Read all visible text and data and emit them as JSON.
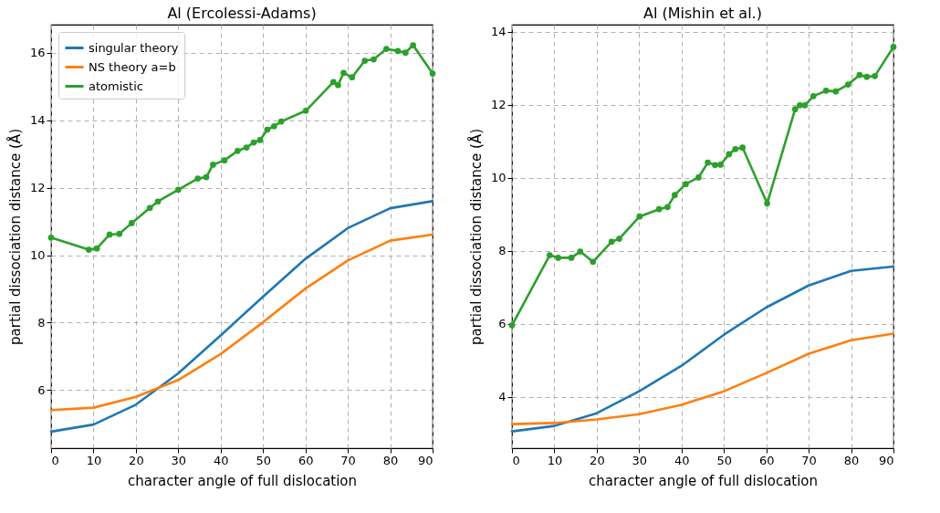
{
  "chart_data": [
    {
      "type": "line",
      "title": "Al (Ercolessi-Adams)",
      "xlabel": "character angle of full dislocation",
      "ylabel": "partial dissociation distance (Å)",
      "xlim": [
        0,
        90
      ],
      "ylim": [
        4.28,
        16.83
      ],
      "xticks": [
        0,
        10,
        20,
        30,
        40,
        50,
        60,
        70,
        80,
        90
      ],
      "yticks": [
        6,
        8,
        10,
        12,
        14,
        16
      ],
      "grid": true,
      "legend": "top left",
      "line_style": "solid",
      "series": [
        {
          "name": "singular theory",
          "color": "#1f77b4",
          "marker": "none",
          "x": [
            0,
            10,
            20,
            30,
            40,
            50,
            60,
            70,
            80,
            90
          ],
          "values": [
            4.77,
            4.98,
            5.57,
            6.5,
            7.62,
            8.77,
            9.89,
            10.8,
            11.39,
            11.6
          ]
        },
        {
          "name": "NS theory a=b",
          "color": "#ff7f0e",
          "marker": "none",
          "x": [
            0,
            10,
            20,
            30,
            40,
            50,
            60,
            70,
            80,
            90
          ],
          "values": [
            5.41,
            5.48,
            5.8,
            6.3,
            7.07,
            8.01,
            9.01,
            9.84,
            10.43,
            10.61
          ]
        },
        {
          "name": "atomistic",
          "color": "#2ca02c",
          "marker": "circle",
          "x": [
            0,
            8.9,
            10.8,
            13.8,
            16.1,
            19,
            23.3,
            25.2,
            30,
            34.6,
            36.6,
            38.2,
            40.9,
            44,
            46.1,
            47.8,
            49.3,
            51,
            52.6,
            54.3,
            60.1,
            66.6,
            67.7,
            69,
            71,
            74,
            76.1,
            79.1,
            81.8,
            83.6,
            85.4,
            90
          ],
          "values": [
            10.52,
            10.16,
            10.2,
            10.61,
            10.63,
            10.95,
            11.4,
            11.59,
            11.94,
            12.27,
            12.31,
            12.68,
            12.81,
            13.09,
            13.19,
            13.34,
            13.41,
            13.72,
            13.82,
            13.96,
            14.28,
            15.13,
            15.04,
            15.4,
            15.27,
            15.76,
            15.8,
            16.11,
            16.05,
            16,
            16.22,
            15.38
          ]
        }
      ]
    },
    {
      "type": "line",
      "title": "Al (Mishin et al.)",
      "xlabel": "character angle of full dislocation",
      "ylabel": "partial dissociation distance (Å)",
      "xlim": [
        0,
        90
      ],
      "ylim": [
        2.59,
        14.2
      ],
      "xticks": [
        0,
        10,
        20,
        30,
        40,
        50,
        60,
        70,
        80,
        90
      ],
      "yticks": [
        4,
        6,
        8,
        10,
        12,
        14
      ],
      "grid": true,
      "legend": "top left",
      "line_style": "solid",
      "series": [
        {
          "name": "singular theory",
          "color": "#1f77b4",
          "marker": "none",
          "x": [
            0,
            10,
            20,
            30,
            40,
            50,
            60,
            70,
            80,
            90
          ],
          "values": [
            3.05,
            3.2,
            3.55,
            4.15,
            4.85,
            5.7,
            6.45,
            7.05,
            7.45,
            7.57
          ]
        },
        {
          "name": "NS theory a=b",
          "color": "#ff7f0e",
          "marker": "none",
          "x": [
            0,
            10,
            20,
            30,
            40,
            50,
            60,
            70,
            80,
            90
          ],
          "values": [
            3.25,
            3.28,
            3.38,
            3.52,
            3.78,
            4.15,
            4.65,
            5.18,
            5.55,
            5.73
          ]
        },
        {
          "name": "atomistic",
          "color": "#2ca02c",
          "marker": "circle",
          "x": [
            0,
            8.9,
            10.9,
            14,
            16.1,
            19.1,
            23.5,
            25.3,
            30.1,
            34.7,
            36.7,
            38.4,
            41,
            44,
            46.2,
            47.9,
            49.2,
            51.2,
            52.7,
            54.4,
            60.2,
            66.8,
            67.9,
            69.1,
            71.1,
            74.1,
            76.4,
            79.3,
            82,
            83.7,
            85.6,
            90
          ],
          "values": [
            5.96,
            7.88,
            7.81,
            7.81,
            7.98,
            7.7,
            8.25,
            8.33,
            8.94,
            9.14,
            9.2,
            9.53,
            9.83,
            10.01,
            10.42,
            10.35,
            10.36,
            10.65,
            10.79,
            10.83,
            9.3,
            11.88,
            11.99,
            11.99,
            12.24,
            12.39,
            12.37,
            12.56,
            12.82,
            12.77,
            12.79,
            13.59
          ]
        }
      ]
    }
  ]
}
